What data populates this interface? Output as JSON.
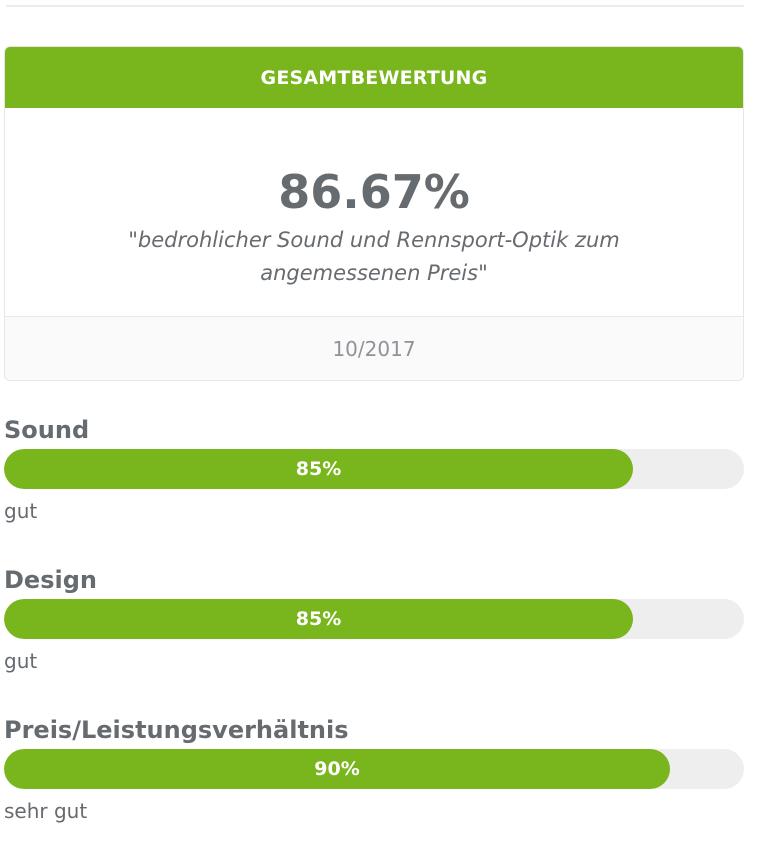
{
  "overall": {
    "header": "GESAMTBEWERTUNG",
    "score": "86.67%",
    "quote": "\"bedrohlicher Sound und Rennsport-Optik zum angemessenen Preis\"",
    "date": "10/2017"
  },
  "criteria": [
    {
      "label": "Sound",
      "percent_text": "85%",
      "value": 0.85,
      "verdict": "gut"
    },
    {
      "label": "Design",
      "percent_text": "85%",
      "value": 0.85,
      "verdict": "gut"
    },
    {
      "label": "Preis/Leistungsverhältnis",
      "percent_text": "90%",
      "value": 0.9,
      "verdict": "sehr gut"
    }
  ],
  "colors": {
    "accent": "#79b51c",
    "track": "#eeeeee",
    "text": "#666b70"
  }
}
